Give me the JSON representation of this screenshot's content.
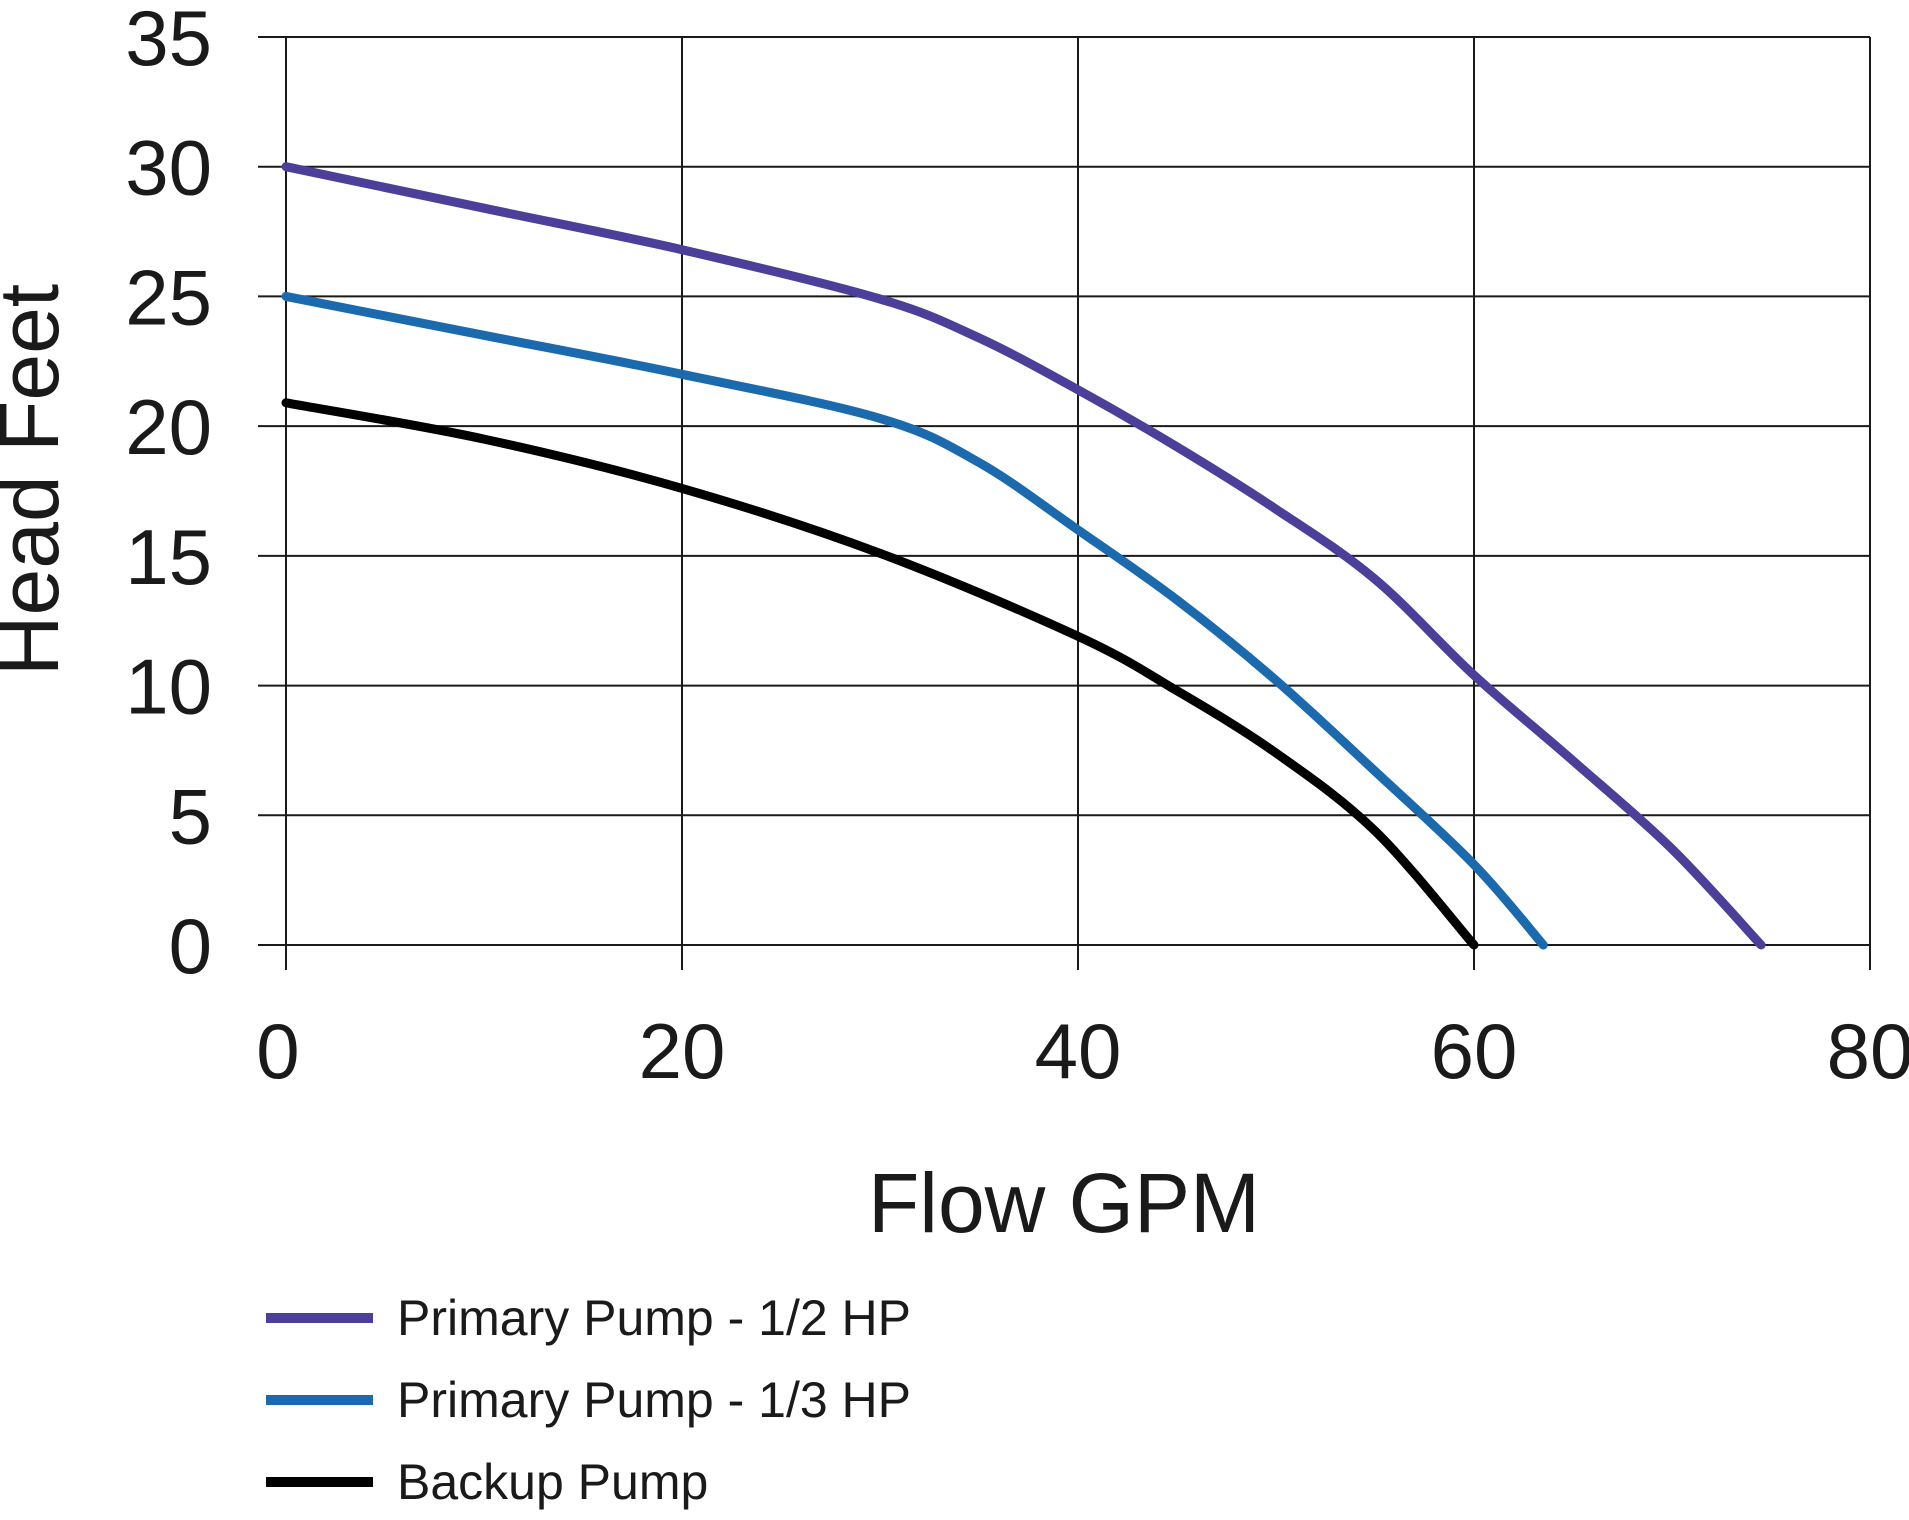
{
  "chart_data": {
    "type": "line",
    "title": "",
    "xlabel": "Flow GPM",
    "ylabel": "Head Feet",
    "xlim": [
      0,
      80
    ],
    "ylim": [
      0,
      35
    ],
    "x_ticks": [
      "0",
      "20",
      "40",
      "60",
      "80"
    ],
    "y_ticks": [
      "0",
      "5",
      "10",
      "15",
      "20",
      "25",
      "30",
      "35"
    ],
    "grid": true,
    "legend_position": "bottom-left",
    "series": [
      {
        "name": "Primary Pump - 1/2 HP",
        "color": "#4b3f99",
        "x": [
          0,
          10,
          20,
          30,
          35,
          40,
          45,
          50,
          55,
          60,
          65,
          70,
          74.5
        ],
        "y": [
          30,
          28.4,
          26.8,
          24.9,
          23.4,
          21.4,
          19.2,
          16.8,
          14.1,
          10.4,
          7.1,
          3.7,
          0
        ]
      },
      {
        "name": "Primary Pump - 1/3 HP",
        "color": "#1a6aad",
        "x": [
          0,
          10,
          20,
          30,
          35,
          40,
          45,
          50,
          55,
          60,
          63.5
        ],
        "y": [
          25,
          23.5,
          22,
          20.3,
          18.6,
          16,
          13.3,
          10.2,
          6.7,
          3.1,
          0
        ]
      },
      {
        "name": "Backup Pump",
        "color": "#000000",
        "x": [
          0,
          10,
          20,
          30,
          40,
          45,
          50,
          55,
          60
        ],
        "y": [
          20.9,
          19.5,
          17.6,
          15.1,
          11.9,
          9.8,
          7.4,
          4.4,
          0
        ]
      }
    ]
  }
}
